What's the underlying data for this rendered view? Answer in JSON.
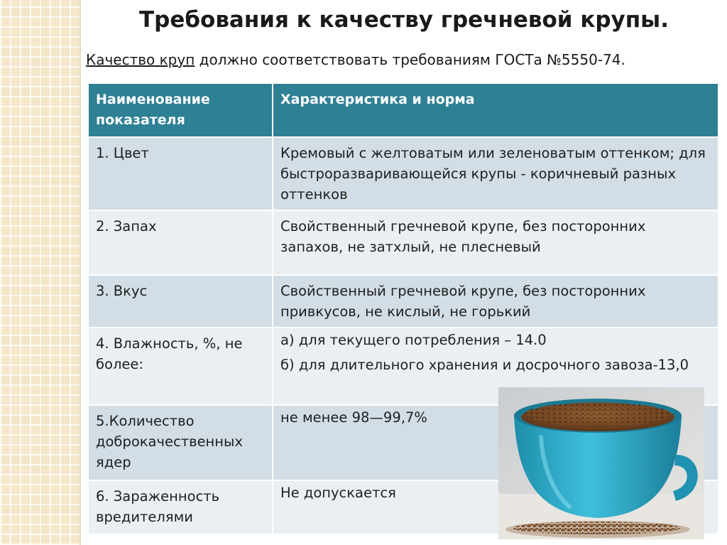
{
  "title": "Требования к качеству гречневой крупы.",
  "subtitle": {
    "underlined": "Качество круп",
    "rest": " должно соответствовать требованиям ГОСТа №5550-74."
  },
  "table": {
    "headers": [
      "Наименование показателя",
      "Характеристика и норма"
    ],
    "rows": [
      {
        "name": "1. Цвет",
        "value": "Кремовый с желтоватым или зеленоватым оттенком; для быстроразваривающейся крупы - коричневый разных оттенков"
      },
      {
        "name": "2. Запах",
        "value": "Свойственный гречневой крупе, без посторонних запахов, не затхлый, не плесневый"
      },
      {
        "name": "3. Вкус",
        "value": "Свойственный гречневой крупе, без посторонних привкусов, не кислый, не горький"
      },
      {
        "name": "4. Влажность, %, не более:",
        "value_a": "а) для текущего потребления – 14.0",
        "value_b": "б) для длительного хранения и досрочного завоза-13,0"
      },
      {
        "name": "5.Количество доброкачественных ядер",
        "value": "не менее 98—99,7%"
      },
      {
        "name": "6. Зараженность вредителями",
        "value": "Не допускается"
      }
    ]
  },
  "colors": {
    "header_bg": "#2e8094",
    "row_dark": "#d2dde5",
    "row_light": "#eaeff3",
    "cup": "#2aa6c4"
  }
}
